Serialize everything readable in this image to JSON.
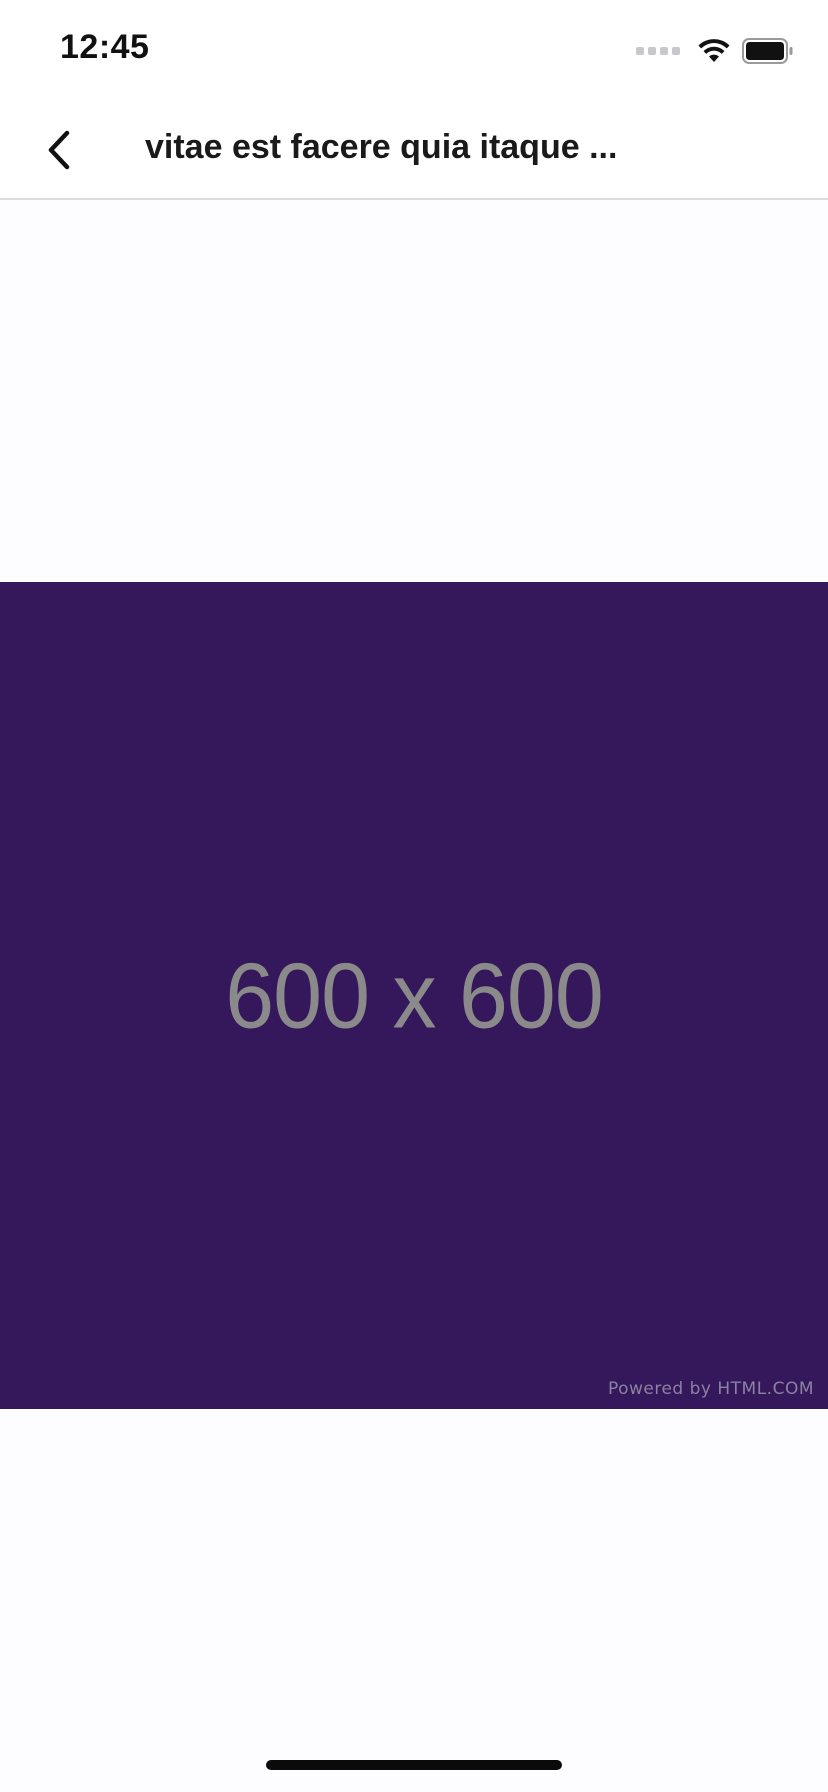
{
  "status_bar": {
    "time": "12:45",
    "signal_icon": "signal-dots-icon",
    "wifi_icon": "wifi-icon",
    "battery_icon": "battery-icon"
  },
  "nav_bar": {
    "back_icon": "chevron-left-icon",
    "title": "vitae est facere quia itaque ..."
  },
  "image": {
    "dimensions_label": "600 x 600",
    "credit": "Powered by HTML.COM",
    "background_color": "#35185b"
  },
  "colors": {
    "page_background": "#fdfdff",
    "bar_background": "#ffffff",
    "divider": "#dcdcdf"
  }
}
